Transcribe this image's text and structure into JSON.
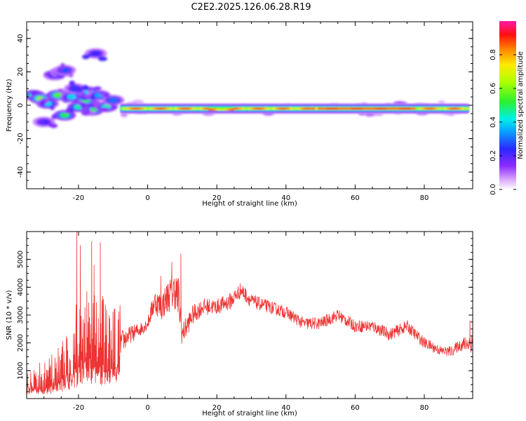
{
  "page": {
    "title": "C2E2.2025.126.06.28.R19"
  },
  "colors": {
    "frame": "#000000",
    "snr_line": "#ee3333",
    "spectro_background": "#ffffff"
  },
  "colorbar": {
    "label": "Normalized spectral amplitude",
    "ticks": [
      "0.0",
      "0.2",
      "0.4",
      "0.6",
      "0.8"
    ],
    "range": [
      0.0,
      1.0
    ],
    "colormap": "white-purple-blue-cyan-green-yellow-orange-red-magenta"
  },
  "chart_data": [
    {
      "type": "heatmap",
      "title": "",
      "xlabel": "Height of straight line (km)",
      "ylabel": "Frequency (Hz)",
      "xlim": [
        -35,
        94
      ],
      "ylim": [
        -50,
        50
      ],
      "xticks": [
        "-20",
        "0",
        "20",
        "40",
        "60",
        "80"
      ],
      "yticks": [
        "40",
        "20",
        "0",
        "-20",
        "-40"
      ],
      "grid": false,
      "description_of_structure": "diffuse blobs between -35 and -8 km spanning about -12 to 32 Hz; a narrow continuous band near -2 Hz from -8 to 93 km with peak amplitude about 0.9",
      "band": {
        "x_start": -8,
        "x_end": 93,
        "center_freq_hz": -2,
        "peak_amplitude": 0.92
      },
      "blobs": [
        {
          "x": -33,
          "y": 6,
          "amp": 0.45
        },
        {
          "x": -31,
          "y": 4,
          "amp": 0.55
        },
        {
          "x": -29,
          "y": 1,
          "amp": 0.35
        },
        {
          "x": -27,
          "y": 18,
          "amp": 0.2
        },
        {
          "x": -25,
          "y": 20,
          "amp": 0.25
        },
        {
          "x": -24,
          "y": 21,
          "amp": 0.22
        },
        {
          "x": -26,
          "y": 6,
          "amp": 0.5
        },
        {
          "x": -24,
          "y": -6,
          "amp": 0.45
        },
        {
          "x": -22,
          "y": 5,
          "amp": 0.35
        },
        {
          "x": -20,
          "y": -1,
          "amp": 0.4
        },
        {
          "x": -18,
          "y": 3,
          "amp": 0.5
        },
        {
          "x": -17,
          "y": 8,
          "amp": 0.35
        },
        {
          "x": -16,
          "y": -3,
          "amp": 0.45
        },
        {
          "x": -15,
          "y": 31,
          "amp": 0.18
        },
        {
          "x": -14,
          "y": 6,
          "amp": 0.3
        },
        {
          "x": -12,
          "y": -1,
          "amp": 0.4
        },
        {
          "x": -10,
          "y": 3,
          "amp": 0.25
        },
        {
          "x": -30,
          "y": -10,
          "amp": 0.18
        },
        {
          "x": -21,
          "y": 10,
          "amp": 0.2
        }
      ]
    },
    {
      "type": "line",
      "title": "",
      "xlabel": "Height of straight line (km)",
      "ylabel": "SNR (10 * v/v)",
      "xlim": [
        -35,
        94
      ],
      "ylim": [
        0,
        6000
      ],
      "xticks": [
        "-20",
        "0",
        "20",
        "40",
        "60",
        "80"
      ],
      "yticks": [
        "5000",
        "4000",
        "3000",
        "2000",
        "1000"
      ],
      "grid": false,
      "series": [
        {
          "color": "#ee3333",
          "envelope_x": [
            -35,
            -30,
            -25,
            -21,
            -19,
            -15,
            -12,
            -10,
            -8,
            -5,
            -2,
            0,
            2,
            4,
            6,
            8,
            9,
            10,
            13,
            16,
            20,
            24,
            27,
            30,
            35,
            40,
            45,
            50,
            55,
            60,
            65,
            70,
            75,
            80,
            85,
            88,
            90,
            93
          ],
          "envelope_y": [
            800,
            700,
            1200,
            1800,
            2400,
            2500,
            1900,
            1900,
            2000,
            2300,
            2500,
            2700,
            3500,
            3300,
            3700,
            3900,
            3500,
            2300,
            3000,
            3300,
            3300,
            3500,
            3900,
            3500,
            3300,
            3100,
            2700,
            2700,
            3000,
            2600,
            2600,
            2300,
            2600,
            2000,
            1700,
            1700,
            1900,
            2000
          ],
          "noise_y": [
            400,
            450,
            900,
            1600,
            1700,
            1600,
            1000,
            500,
            450,
            300,
            250,
            230,
            450,
            500,
            600,
            700,
            900,
            420,
            350,
            300,
            280,
            300,
            280,
            250,
            230,
            220,
            220,
            220,
            220,
            220,
            220,
            220,
            220,
            200,
            180,
            180,
            200,
            350
          ],
          "spikes": [
            {
              "x": -20.5,
              "y": 6000
            },
            {
              "x": -19.5,
              "y": 5500
            },
            {
              "x": -16.2,
              "y": 5650
            },
            {
              "x": -13.7,
              "y": 5600
            },
            {
              "x": -15.5,
              "y": 4800
            },
            {
              "x": 3.8,
              "y": 4400
            },
            {
              "x": 7.0,
              "y": 4900
            },
            {
              "x": 9.6,
              "y": 5200
            },
            {
              "x": 93.2,
              "y": 2800
            }
          ]
        }
      ]
    }
  ]
}
